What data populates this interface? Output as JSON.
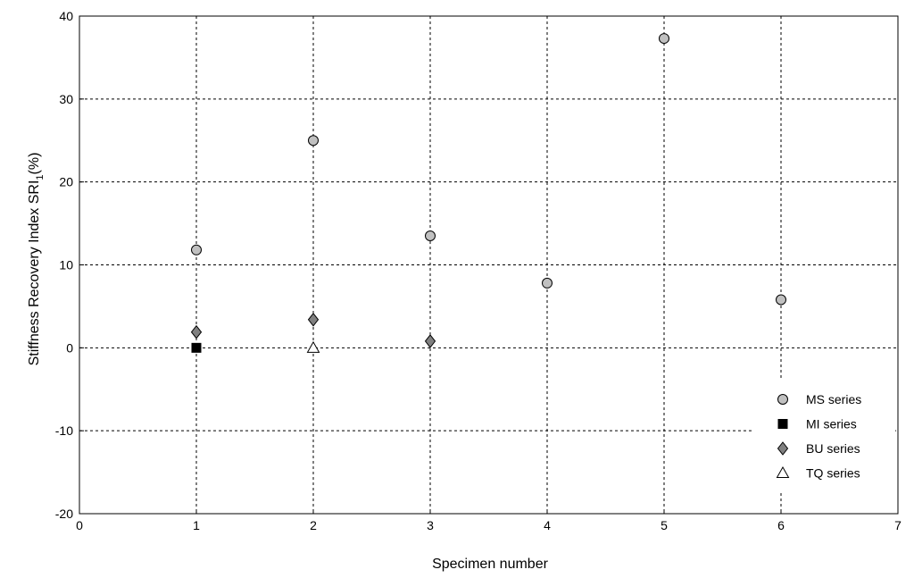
{
  "chart_data": {
    "type": "scatter",
    "xlabel": "Specimen number",
    "ylabel": "Stiffness Recovery Index SRI",
    "ylabel_subscript": "1",
    "ylabel_suffix": "(%)",
    "xlim": [
      0,
      7
    ],
    "ylim": [
      -20,
      40
    ],
    "xticks": [
      0,
      1,
      2,
      3,
      4,
      5,
      6,
      7
    ],
    "yticks": [
      -20,
      -10,
      0,
      10,
      20,
      30,
      40
    ],
    "grid": true,
    "legend_position": "bottom-right",
    "series": [
      {
        "name": "MS series",
        "marker": "circle",
        "color": "#c0c0c0",
        "points": [
          {
            "x": 1,
            "y": 11.8
          },
          {
            "x": 2,
            "y": 25.0
          },
          {
            "x": 3,
            "y": 13.5
          },
          {
            "x": 4,
            "y": 7.8
          },
          {
            "x": 5,
            "y": 37.3
          },
          {
            "x": 6,
            "y": 5.8
          }
        ]
      },
      {
        "name": "MI series",
        "marker": "square",
        "color": "#000000",
        "points": [
          {
            "x": 1,
            "y": 0.0
          }
        ]
      },
      {
        "name": "BU series",
        "marker": "diamond",
        "color": "#808080",
        "points": [
          {
            "x": 1,
            "y": 1.9
          },
          {
            "x": 2,
            "y": 3.4
          },
          {
            "x": 3,
            "y": 0.8
          }
        ]
      },
      {
        "name": "TQ series",
        "marker": "triangle",
        "color": "#ffffff",
        "points": [
          {
            "x": 2,
            "y": 0.0
          }
        ]
      }
    ]
  }
}
